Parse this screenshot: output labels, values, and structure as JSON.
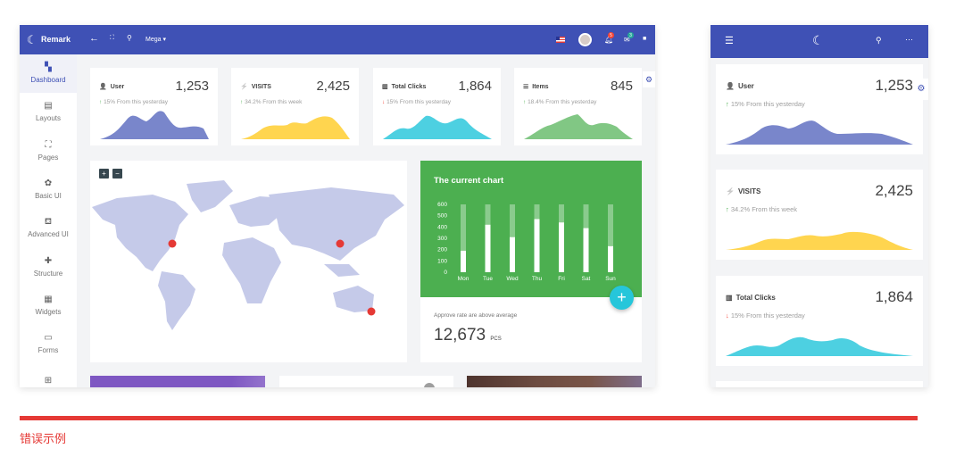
{
  "desktop": {
    "header": {
      "brand": "Remark",
      "mega_label": "Mega",
      "notif_badge": "5",
      "msg_badge": "3",
      "color": "#3f51b5"
    },
    "sidebar": {
      "items": [
        {
          "label": "Dashboard",
          "icon": "dashboard-icon",
          "glyph": "▚",
          "active": true
        },
        {
          "label": "Layouts",
          "icon": "layouts-icon",
          "glyph": "▤"
        },
        {
          "label": "Pages",
          "icon": "pages-icon",
          "glyph": "⛶"
        },
        {
          "label": "Basic UI",
          "icon": "palette-icon",
          "glyph": "✿"
        },
        {
          "label": "Advanced UI",
          "icon": "paint-bucket-icon",
          "glyph": "⛾"
        },
        {
          "label": "Structure",
          "icon": "puzzle-icon",
          "glyph": "✚"
        },
        {
          "label": "Widgets",
          "icon": "widgets-icon",
          "glyph": "▦"
        },
        {
          "label": "Forms",
          "icon": "comment-icon",
          "glyph": "▭"
        },
        {
          "label": "",
          "icon": "table-icon",
          "glyph": "⊞"
        }
      ]
    },
    "stats": [
      {
        "title": "User",
        "icon": "user-icon",
        "glyph": "👤",
        "value": "1,253",
        "trend": "up",
        "arrow": "↑",
        "sub": "15% From this yesterday",
        "color": "#7986cb"
      },
      {
        "title": "VISITS",
        "icon": "flash-icon",
        "glyph": "⚡",
        "value": "2,425",
        "trend": "up",
        "arrow": "↑",
        "sub": "34.2% From this week",
        "color": "#ffd54f"
      },
      {
        "title": "Total Clicks",
        "icon": "bar-chart-icon",
        "glyph": "▥",
        "value": "1,864",
        "trend": "down",
        "arrow": "↓",
        "sub": "15% From this yesterday",
        "color": "#4dd0e1"
      },
      {
        "title": "Items",
        "icon": "list-icon",
        "glyph": "☰",
        "value": "845",
        "trend": "up",
        "arrow": "↑",
        "sub": "18.4% From this yesterday",
        "color": "#81c784"
      }
    ],
    "map": {
      "zoom_in": "+",
      "zoom_out": "−",
      "land_color": "#c5cae9",
      "marker_color": "#e53935"
    },
    "current_chart": {
      "title": "The current chart",
      "caption": "Approve rate are above average",
      "total": "12,673",
      "unit": "PCS",
      "bg": "#4caf50",
      "fab_color": "#26c6da"
    }
  },
  "mobile": {
    "stats": [
      {
        "title": "User",
        "glyph": "👤",
        "value": "1,253",
        "arrow": "↑",
        "trend": "up",
        "sub": "15% From this yesterday",
        "color": "#7986cb"
      },
      {
        "title": "VISITS",
        "glyph": "⚡",
        "value": "2,425",
        "arrow": "↑",
        "trend": "up",
        "sub": "34.2% From this week",
        "color": "#ffd54f"
      },
      {
        "title": "Total Clicks",
        "glyph": "▥",
        "value": "1,864",
        "arrow": "↓",
        "trend": "down",
        "sub": "15% From this yesterday",
        "color": "#4dd0e1"
      }
    ]
  },
  "footer": {
    "caption": "错误示例",
    "color": "#e53935"
  },
  "chart_data": {
    "type": "bar",
    "title": "The current chart",
    "categories": [
      "Mon",
      "Tue",
      "Wed",
      "Thu",
      "Fri",
      "Sat",
      "Sun"
    ],
    "values": [
      190,
      420,
      310,
      470,
      440,
      390,
      230
    ],
    "max_values": [
      600,
      600,
      600,
      600,
      600,
      600,
      600
    ],
    "yticks": [
      "600",
      "500",
      "400",
      "300",
      "200",
      "100",
      "0"
    ],
    "ylim": [
      0,
      600
    ]
  }
}
